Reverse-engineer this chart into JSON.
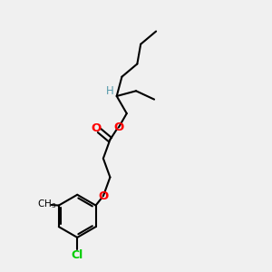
{
  "bg_color": "#f0f0f0",
  "bond_color": "#000000",
  "O_color": "#ff0000",
  "Cl_color": "#00cc00",
  "H_color": "#5599aa",
  "line_width": 1.5,
  "figsize": [
    3.0,
    3.0
  ],
  "dpi": 100,
  "xlim": [
    0,
    10
  ],
  "ylim": [
    0,
    10
  ]
}
